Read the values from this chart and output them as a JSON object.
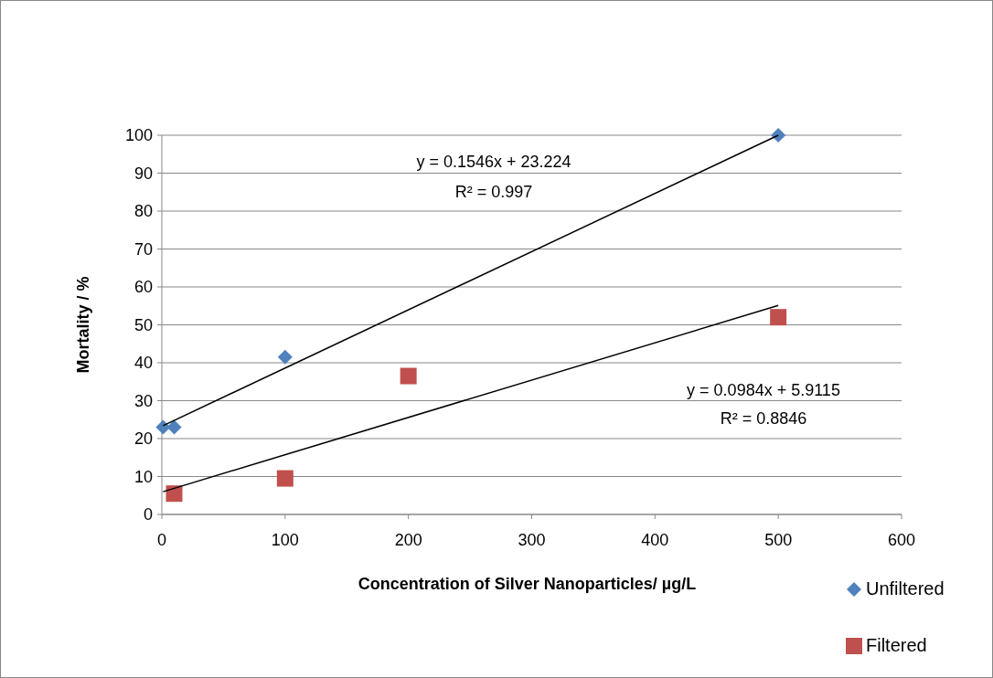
{
  "chart_data": {
    "type": "scatter",
    "xlabel": "Concentration of Silver Nanoparticles/ µg/L",
    "ylabel": "Mortality / %",
    "xlim": [
      0,
      600
    ],
    "xticks": [
      0,
      100,
      200,
      300,
      400,
      500,
      600
    ],
    "ylim": [
      0,
      100
    ],
    "yticks": [
      0,
      10,
      20,
      30,
      40,
      50,
      60,
      70,
      80,
      90,
      100
    ],
    "grid": "y",
    "legend": "bottom right",
    "series": [
      {
        "name": "Unfiltered",
        "color": "#4f81bd",
        "marker": "diamond",
        "x": [
          1,
          10,
          100,
          500
        ],
        "values": [
          23,
          23,
          41.5,
          100
        ]
      },
      {
        "name": "Filtered",
        "color": "#c0504d",
        "marker": "square",
        "x": [
          10,
          100,
          200,
          500
        ],
        "values": [
          5.5,
          9.5,
          36.5,
          52
        ]
      },
      {
        "type": "line",
        "color": "#000000",
        "marker": "none",
        "x": [
          1,
          500
        ],
        "values": [
          23.4,
          100
        ]
      },
      {
        "type": "line",
        "color": "#000000",
        "marker": "none",
        "x": [
          1,
          500
        ],
        "values": [
          6,
          55.1
        ]
      }
    ],
    "annotations": [
      "y = 0.1546x + 23.224",
      "R² = 0.997",
      "y = 0.0984x + 5.9115",
      "R² = 0.8846"
    ]
  }
}
